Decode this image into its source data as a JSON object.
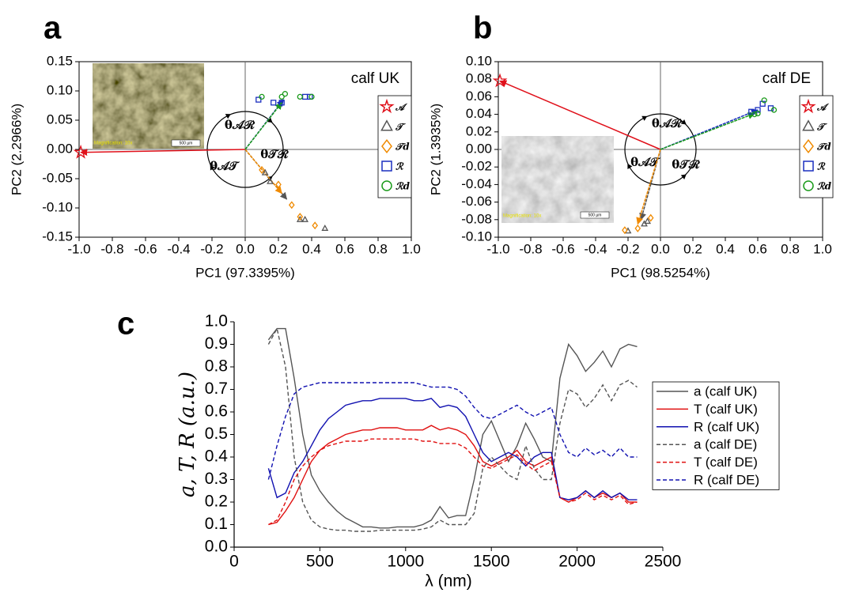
{
  "chart_data": [
    {
      "type": "scatter",
      "panel": "a",
      "note": "calf UK",
      "xlabel": "PC1 (97.3395%)",
      "ylabel": "PC2 (2.2966%)",
      "xlim": [
        -1,
        1
      ],
      "ylim": [
        -0.15,
        0.15
      ],
      "xticks": [
        {
          "value": -1,
          "label": "-1.0"
        },
        {
          "value": -0.8,
          "label": "-0.8"
        },
        {
          "value": -0.6,
          "label": "-0.6"
        },
        {
          "value": -0.4,
          "label": "-0.4"
        },
        {
          "value": -0.2,
          "label": "-0.2"
        },
        {
          "value": 0,
          "label": "0.0"
        },
        {
          "value": 0.2,
          "label": "0.2"
        },
        {
          "value": 0.4,
          "label": "0.4"
        },
        {
          "value": 0.6,
          "label": "0.6"
        },
        {
          "value": 0.8,
          "label": "0.8"
        },
        {
          "value": 1,
          "label": "1.0"
        }
      ],
      "yticks": [
        {
          "value": -0.15,
          "label": "-0.15"
        },
        {
          "value": -0.1,
          "label": "-0.10"
        },
        {
          "value": -0.05,
          "label": "-0.05"
        },
        {
          "value": 0,
          "label": "0.00"
        },
        {
          "value": 0.05,
          "label": "0.05"
        },
        {
          "value": 0.1,
          "label": "0.10"
        },
        {
          "value": 0.15,
          "label": "0.15"
        }
      ],
      "annotations": [
        "θ𝒜ℛ",
        "θ𝒯ℛ",
        "θ𝒜𝒯"
      ],
      "inset": {
        "caption": "Magnification: 10x",
        "scale": "500 µm"
      },
      "series": [
        {
          "name": "𝒜",
          "marker": "star",
          "color": "#e0101a",
          "x": [
            -0.99
          ],
          "y": [
            -0.005
          ],
          "arrow": {
            "x": -0.99,
            "y": -0.005
          }
        },
        {
          "name": "𝒯",
          "marker": "triangle",
          "color": "#555555",
          "x": [
            0.12,
            0.15,
            0.33,
            0.36,
            0.48
          ],
          "y": [
            -0.04,
            -0.055,
            -0.12,
            -0.12,
            -0.135
          ],
          "arrow": {
            "x": 0.25,
            "y": -0.085
          }
        },
        {
          "name": "𝒯d",
          "marker": "diamond",
          "color": "#f08a00",
          "x": [
            0.1,
            0.2,
            0.28,
            0.33,
            0.42
          ],
          "y": [
            -0.035,
            -0.06,
            -0.095,
            -0.115,
            -0.13
          ],
          "arrow": {
            "x": 0.22,
            "y": -0.075
          }
        },
        {
          "name": "ℛ",
          "marker": "square",
          "color": "#1a2fbf",
          "x": [
            0.08,
            0.17,
            0.22,
            0.36,
            0.39
          ],
          "y": [
            0.085,
            0.08,
            0.08,
            0.09,
            0.09
          ],
          "arrow": {
            "x": 0.23,
            "y": 0.085
          }
        },
        {
          "name": "ℛd",
          "marker": "circle",
          "color": "#1a9a1a",
          "x": [
            0.1,
            0.22,
            0.24,
            0.33,
            0.4
          ],
          "y": [
            0.09,
            0.09,
            0.095,
            0.09,
            0.09
          ],
          "arrow": {
            "x": 0.22,
            "y": 0.08
          }
        }
      ]
    },
    {
      "type": "scatter",
      "panel": "b",
      "note": "calf DE",
      "xlabel": "PC1 (98.5254%)",
      "ylabel": "PC2 (1.3935%)",
      "xlim": [
        -1,
        1
      ],
      "ylim": [
        -0.1,
        0.1
      ],
      "xticks": [
        {
          "value": -1,
          "label": "-1.0"
        },
        {
          "value": -0.8,
          "label": "-0.8"
        },
        {
          "value": -0.6,
          "label": "-0.6"
        },
        {
          "value": -0.4,
          "label": "-0.4"
        },
        {
          "value": -0.2,
          "label": "-0.2"
        },
        {
          "value": 0,
          "label": "0.0"
        },
        {
          "value": 0.2,
          "label": "0.2"
        },
        {
          "value": 0.4,
          "label": "0.4"
        },
        {
          "value": 0.6,
          "label": "0.6"
        },
        {
          "value": 0.8,
          "label": "0.8"
        },
        {
          "value": 1,
          "label": "1.0"
        }
      ],
      "yticks": [
        {
          "value": -0.1,
          "label": "-0.10"
        },
        {
          "value": -0.08,
          "label": "-0.08"
        },
        {
          "value": -0.06,
          "label": "-0.06"
        },
        {
          "value": -0.04,
          "label": "-0.04"
        },
        {
          "value": -0.02,
          "label": "-0.02"
        },
        {
          "value": 0,
          "label": "0.00"
        },
        {
          "value": 0.02,
          "label": "0.02"
        },
        {
          "value": 0.04,
          "label": "0.04"
        },
        {
          "value": 0.06,
          "label": "0.06"
        },
        {
          "value": 0.08,
          "label": "0.08"
        },
        {
          "value": 0.1,
          "label": "0.10"
        }
      ],
      "annotations": [
        "θ𝒜ℛ",
        "θ𝒯ℛ",
        "θ𝒜𝒯"
      ],
      "inset": {
        "caption": "Magnification: 10x",
        "scale": "500 µm"
      },
      "series": [
        {
          "name": "𝒜",
          "marker": "star",
          "color": "#e0101a",
          "x": [
            -0.99
          ],
          "y": [
            0.078
          ],
          "arrow": {
            "x": -0.99,
            "y": 0.078
          }
        },
        {
          "name": "𝒯",
          "marker": "triangle",
          "color": "#555555",
          "x": [
            -0.2,
            -0.1,
            -0.08
          ],
          "y": [
            -0.093,
            -0.085,
            -0.082
          ],
          "arrow": {
            "x": -0.12,
            "y": -0.08
          }
        },
        {
          "name": "𝒯d",
          "marker": "diamond",
          "color": "#f08a00",
          "x": [
            -0.22,
            -0.14,
            -0.06
          ],
          "y": [
            -0.092,
            -0.09,
            -0.078
          ],
          "arrow": {
            "x": -0.14,
            "y": -0.085
          }
        },
        {
          "name": "ℛ",
          "marker": "square",
          "color": "#1a2fbf",
          "x": [
            0.56,
            0.6,
            0.63,
            0.68
          ],
          "y": [
            0.043,
            0.045,
            0.052,
            0.047
          ],
          "arrow": {
            "x": 0.6,
            "y": 0.045
          }
        },
        {
          "name": "ℛd",
          "marker": "circle",
          "color": "#1a9a1a",
          "x": [
            0.58,
            0.6,
            0.64,
            0.7
          ],
          "y": [
            0.04,
            0.041,
            0.056,
            0.045
          ],
          "arrow": {
            "x": 0.58,
            "y": 0.041
          }
        }
      ]
    },
    {
      "type": "line",
      "panel": "c",
      "xlabel": "λ (nm)",
      "ylabel": "a, T, R (a.u.)",
      "xlim": [
        0,
        2500
      ],
      "ylim": [
        0,
        1
      ],
      "xticks": [
        0,
        500,
        1000,
        1500,
        2000,
        2500
      ],
      "yticks": [
        {
          "value": 0,
          "label": "0.0"
        },
        {
          "value": 0.1,
          "label": "0.1"
        },
        {
          "value": 0.2,
          "label": "0.2"
        },
        {
          "value": 0.3,
          "label": "0.3"
        },
        {
          "value": 0.4,
          "label": "0.4"
        },
        {
          "value": 0.5,
          "label": "0.5"
        },
        {
          "value": 0.6,
          "label": "0.6"
        },
        {
          "value": 0.7,
          "label": "0.7"
        },
        {
          "value": 0.8,
          "label": "0.8"
        },
        {
          "value": 0.9,
          "label": "0.9"
        },
        {
          "value": 1,
          "label": "1.0"
        }
      ],
      "x": [
        200,
        250,
        300,
        350,
        400,
        450,
        500,
        550,
        600,
        650,
        700,
        750,
        800,
        850,
        900,
        950,
        1000,
        1050,
        1100,
        1150,
        1200,
        1250,
        1300,
        1350,
        1400,
        1450,
        1500,
        1550,
        1600,
        1650,
        1700,
        1750,
        1800,
        1850,
        1900,
        1950,
        2000,
        2050,
        2100,
        2150,
        2200,
        2250,
        2300,
        2350
      ],
      "series": [
        {
          "name": "a (calf UK)",
          "color": "#555555",
          "dashed": false,
          "values": [
            0.92,
            0.97,
            0.97,
            0.75,
            0.5,
            0.32,
            0.25,
            0.2,
            0.16,
            0.13,
            0.11,
            0.09,
            0.09,
            0.085,
            0.085,
            0.09,
            0.09,
            0.09,
            0.1,
            0.12,
            0.18,
            0.13,
            0.14,
            0.14,
            0.3,
            0.5,
            0.56,
            0.47,
            0.38,
            0.45,
            0.55,
            0.48,
            0.4,
            0.38,
            0.75,
            0.9,
            0.85,
            0.78,
            0.82,
            0.87,
            0.8,
            0.88,
            0.9,
            0.89
          ]
        },
        {
          "name": "T (calf UK)",
          "color": "#e01010",
          "dashed": false,
          "values": [
            0.1,
            0.11,
            0.16,
            0.22,
            0.3,
            0.38,
            0.43,
            0.46,
            0.48,
            0.5,
            0.51,
            0.52,
            0.52,
            0.53,
            0.53,
            0.53,
            0.52,
            0.52,
            0.52,
            0.54,
            0.52,
            0.53,
            0.52,
            0.5,
            0.45,
            0.38,
            0.36,
            0.38,
            0.4,
            0.43,
            0.38,
            0.36,
            0.38,
            0.4,
            0.22,
            0.2,
            0.22,
            0.25,
            0.22,
            0.24,
            0.22,
            0.24,
            0.2,
            0.2
          ]
        },
        {
          "name": "R (calf UK)",
          "color": "#1010b0",
          "dashed": false,
          "values": [
            0.35,
            0.22,
            0.24,
            0.33,
            0.38,
            0.45,
            0.52,
            0.57,
            0.6,
            0.63,
            0.64,
            0.65,
            0.65,
            0.66,
            0.66,
            0.66,
            0.66,
            0.65,
            0.65,
            0.66,
            0.62,
            0.63,
            0.62,
            0.58,
            0.5,
            0.42,
            0.38,
            0.4,
            0.42,
            0.4,
            0.36,
            0.4,
            0.42,
            0.42,
            0.22,
            0.21,
            0.22,
            0.25,
            0.22,
            0.25,
            0.22,
            0.24,
            0.21,
            0.21
          ]
        },
        {
          "name": "a (calf DE)",
          "color": "#555555",
          "dashed": true,
          "values": [
            0.9,
            0.97,
            0.8,
            0.4,
            0.2,
            0.12,
            0.09,
            0.08,
            0.075,
            0.075,
            0.07,
            0.07,
            0.07,
            0.075,
            0.075,
            0.075,
            0.075,
            0.075,
            0.08,
            0.09,
            0.12,
            0.1,
            0.1,
            0.1,
            0.15,
            0.35,
            0.4,
            0.36,
            0.32,
            0.3,
            0.45,
            0.35,
            0.3,
            0.3,
            0.55,
            0.7,
            0.68,
            0.62,
            0.66,
            0.72,
            0.65,
            0.72,
            0.74,
            0.71
          ]
        },
        {
          "name": "T (calf DE)",
          "color": "#e01010",
          "dashed": true,
          "values": [
            0.1,
            0.12,
            0.2,
            0.3,
            0.36,
            0.4,
            0.43,
            0.45,
            0.46,
            0.47,
            0.47,
            0.47,
            0.48,
            0.48,
            0.48,
            0.48,
            0.48,
            0.48,
            0.47,
            0.47,
            0.46,
            0.46,
            0.46,
            0.44,
            0.4,
            0.36,
            0.35,
            0.37,
            0.39,
            0.41,
            0.37,
            0.34,
            0.36,
            0.38,
            0.22,
            0.2,
            0.21,
            0.24,
            0.21,
            0.23,
            0.21,
            0.23,
            0.19,
            0.2
          ]
        },
        {
          "name": "R (calf DE)",
          "color": "#1010b0",
          "dashed": true,
          "values": [
            0.3,
            0.45,
            0.58,
            0.68,
            0.71,
            0.72,
            0.73,
            0.73,
            0.73,
            0.73,
            0.73,
            0.73,
            0.73,
            0.73,
            0.73,
            0.73,
            0.73,
            0.73,
            0.72,
            0.71,
            0.71,
            0.71,
            0.7,
            0.67,
            0.62,
            0.58,
            0.57,
            0.59,
            0.61,
            0.63,
            0.6,
            0.58,
            0.6,
            0.62,
            0.5,
            0.42,
            0.4,
            0.44,
            0.41,
            0.43,
            0.4,
            0.44,
            0.4,
            0.4
          ]
        }
      ]
    }
  ]
}
